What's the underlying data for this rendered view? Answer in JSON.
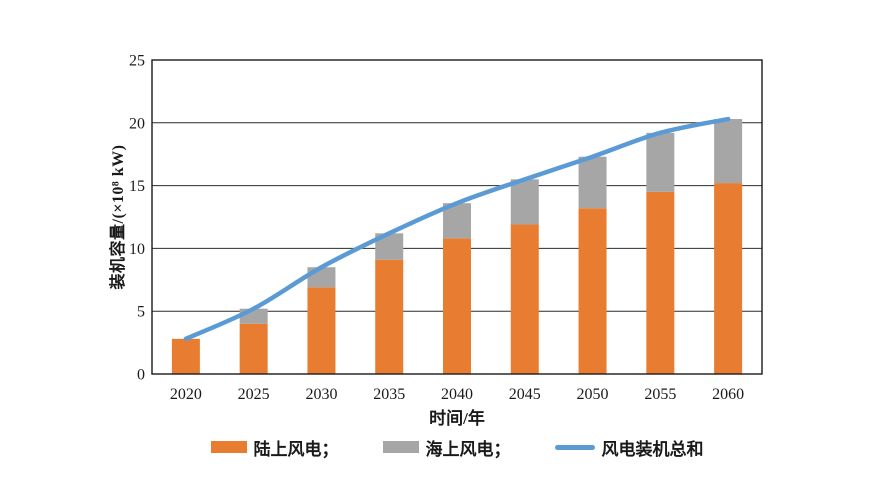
{
  "page": {
    "background": "#ffffff"
  },
  "chart_data": {
    "type": "bar",
    "subtype": "stacked-bar-with-line",
    "categories": [
      "2020",
      "2025",
      "2030",
      "2035",
      "2040",
      "2045",
      "2050",
      "2055",
      "2060"
    ],
    "series": [
      {
        "name": "陆上风电",
        "kind": "bar",
        "stack": "capacity",
        "color": "#E87D31",
        "values": [
          2.8,
          4.0,
          6.9,
          9.1,
          10.8,
          11.9,
          13.2,
          14.5,
          15.2
        ]
      },
      {
        "name": "海上风电",
        "kind": "bar",
        "stack": "capacity",
        "color": "#A6A6A6",
        "values": [
          0,
          1.2,
          1.6,
          2.1,
          2.8,
          3.6,
          4.1,
          4.7,
          5.1
        ]
      },
      {
        "name": "风电装机总和",
        "kind": "line",
        "smooth": true,
        "color": "#5B9BD5",
        "values": [
          2.8,
          5.2,
          8.5,
          11.2,
          13.6,
          15.5,
          17.3,
          19.2,
          20.3
        ]
      }
    ],
    "title": "",
    "xlabel": "时间/年",
    "ylabel": "装机容量/(×10⁸ kW)",
    "ylim": [
      0,
      25
    ],
    "yticks": [
      "0",
      "5",
      "10",
      "15",
      "20",
      "25"
    ],
    "grid": "horizontal",
    "plot_border": true,
    "legend_position": "bottom",
    "legend": [
      {
        "label": "陆上风电；",
        "swatch": "bar",
        "color": "#E87D31"
      },
      {
        "label": "海上风电；",
        "swatch": "bar",
        "color": "#A6A6A6"
      },
      {
        "label": "风电装机总和",
        "swatch": "line",
        "color": "#5B9BD5"
      }
    ],
    "colors": {
      "onshore": "#E87D31",
      "offshore": "#A6A6A6",
      "total_line": "#5B9BD5",
      "axis": "#1a1a1a",
      "gridline": "#2b2b2b",
      "text": "#1a1a1a"
    }
  }
}
